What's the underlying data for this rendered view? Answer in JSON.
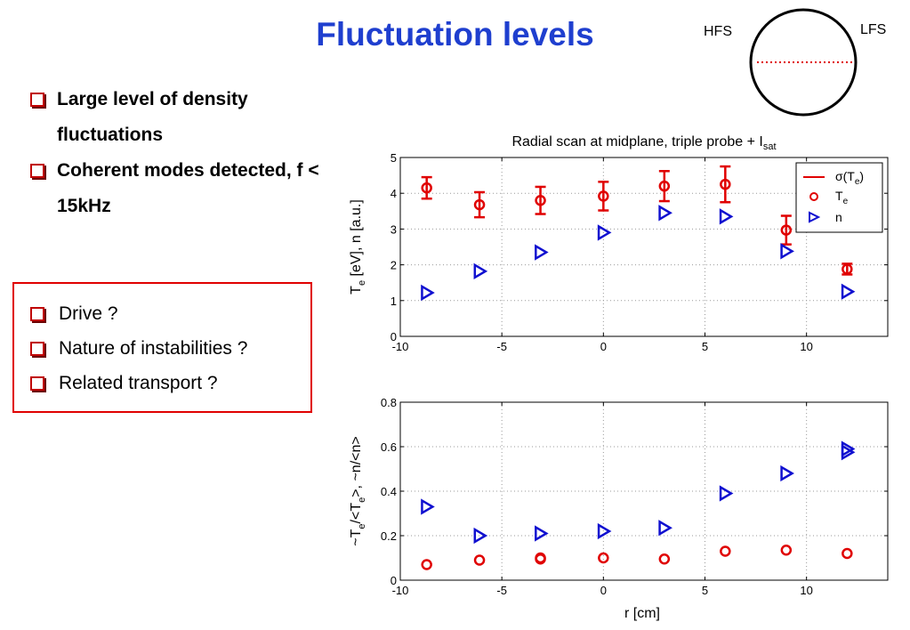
{
  "title": "Fluctuation levels",
  "bullets_top": [
    "Large level of  density fluctuations",
    "Coherent modes detected, f < 15kHz"
  ],
  "bullets_box": [
    "Drive ?",
    "Nature of instabilities ?",
    "Related transport ?"
  ],
  "diagram": {
    "hfs_label": "HFS",
    "lfs_label": "LFS"
  },
  "colors": {
    "title": "#1f3fcf",
    "te": "#e00000",
    "n": "#1010d0",
    "box_border": "#e00000"
  },
  "icons": {
    "bullet": "checkbox-bullet-icon"
  },
  "chart_data": [
    {
      "type": "scatter",
      "title": "Radial scan at midplane, triple probe + I",
      "title_subscript": "sat",
      "ylabel": "T",
      "ylabel_sub": "e",
      "ylabel_rest": " [eV],  n [a.u.]",
      "xlim": [
        -10,
        14
      ],
      "ylim": [
        0,
        5
      ],
      "xticks": [
        -10,
        -5,
        0,
        5,
        10
      ],
      "xtick_labels": [
        "-10",
        "-5",
        "0",
        "5",
        "10"
      ],
      "yticks": [
        0,
        1,
        2,
        3,
        4,
        5
      ],
      "ytick_labels": [
        "0",
        "1",
        "2",
        "3",
        "4",
        "5"
      ],
      "legend_position": "top-right",
      "legend": {
        "sigma": "σ(T",
        "sigma_sub": "e",
        "sigma_close": ")",
        "te": "T",
        "te_sub": "e",
        "n": "n"
      },
      "series": [
        {
          "name": "T_e",
          "x": [
            -8.7,
            -6.1,
            -3.1,
            0,
            3,
            6,
            9,
            12
          ],
          "y": [
            4.15,
            3.68,
            3.8,
            3.92,
            4.2,
            4.25,
            2.97,
            1.88
          ],
          "err": [
            0.3,
            0.35,
            0.38,
            0.4,
            0.42,
            0.5,
            0.4,
            0.15
          ]
        },
        {
          "name": "n",
          "x": [
            -8.7,
            -6.1,
            -3.1,
            0,
            3,
            6,
            9,
            12
          ],
          "y": [
            1.22,
            1.82,
            2.35,
            2.9,
            3.45,
            3.35,
            2.38,
            1.25
          ]
        }
      ]
    },
    {
      "type": "scatter",
      "xlabel": "r  [cm]",
      "ylabel": "~T",
      "ylabel_sub": "e",
      "ylabel_rest": "/<T",
      "ylabel_sub2": "e",
      "ylabel_rest2": ">,  ~n/<n>",
      "xlim": [
        -10,
        14
      ],
      "ylim": [
        0,
        0.8
      ],
      "xticks": [
        -10,
        -5,
        0,
        5,
        10
      ],
      "xtick_labels": [
        "-10",
        "-5",
        "0",
        "5",
        "10"
      ],
      "yticks": [
        0,
        0.2,
        0.4,
        0.6,
        0.8
      ],
      "ytick_labels": [
        "0",
        "0.2",
        "0.4",
        "0.6",
        "0.8"
      ],
      "series": [
        {
          "name": "T_e",
          "x": [
            -8.7,
            -6.1,
            -3.1,
            -3.1,
            0,
            3,
            6,
            9,
            12
          ],
          "y": [
            0.07,
            0.09,
            0.1,
            0.095,
            0.1,
            0.095,
            0.13,
            0.135,
            0.12
          ]
        },
        {
          "name": "n",
          "x": [
            -8.7,
            -6.1,
            -3.1,
            0,
            3,
            6,
            9,
            12,
            12
          ],
          "y": [
            0.33,
            0.2,
            0.21,
            0.22,
            0.235,
            0.39,
            0.48,
            0.59,
            0.575
          ]
        }
      ]
    }
  ]
}
